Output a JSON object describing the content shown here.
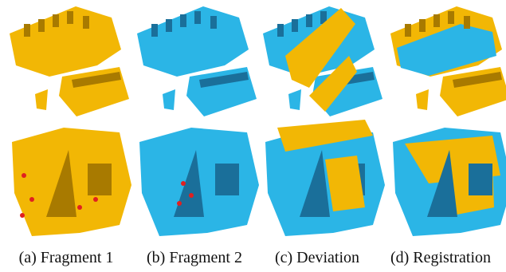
{
  "captions": [
    "(a) Fragment 1",
    "(b) Fragment 2",
    "(c) Deviation",
    "(d) Registration"
  ]
}
